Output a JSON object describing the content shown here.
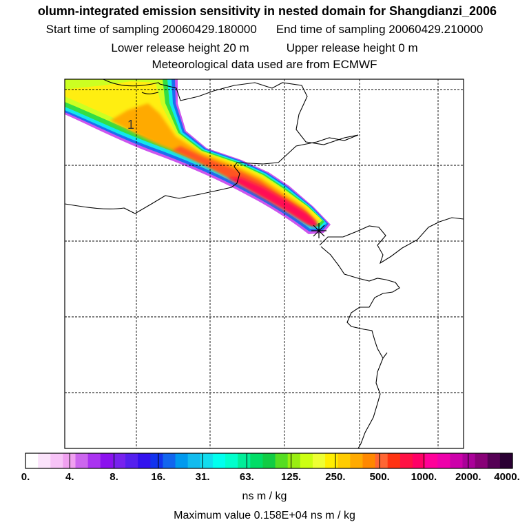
{
  "header": {
    "title": "olumn-integrated emission sensitivity in nested domain for Shangdianzi_2006",
    "start_time": "Start time of sampling 20060429.180000",
    "end_time": "End time of sampling 20060429.210000",
    "lower_release": "Lower release height   20 m",
    "upper_release": "Upper release height    0 m",
    "met_data": "Meteorological data used are from ECMWF"
  },
  "map": {
    "contour_label": "1",
    "source_marker": "receptor-star"
  },
  "colorbar": {
    "ticks": [
      "0.",
      "4.",
      "8.",
      "16.",
      "31.",
      "63.",
      "125.",
      "250.",
      "500.",
      "1000.",
      "2000.",
      "4000."
    ],
    "colors": [
      "#ffffff",
      "#fbe3fb",
      "#f7c3f7",
      "#f0a0f0",
      "#cc66ee",
      "#aa33f0",
      "#8b11ee",
      "#7722ee",
      "#5520ee",
      "#3311ee",
      "#1133ee",
      "#1166ee",
      "#0099ee",
      "#11bbee",
      "#11ddee",
      "#00ffee",
      "#00ffcc",
      "#00ee99",
      "#00dd66",
      "#11cc44",
      "#55dd22",
      "#99ee11",
      "#ccff11",
      "#eeff33",
      "#ffee00",
      "#ffcc00",
      "#ffaa00",
      "#ff8800",
      "#ff6633",
      "#ff3311",
      "#ff1144",
      "#ff0066",
      "#ff0099",
      "#ee00aa",
      "#cc00aa",
      "#aa0099",
      "#880077",
      "#550055",
      "#2a0033"
    ],
    "unit": "ns m / kg"
  },
  "footer": {
    "max_value": "Maximum value  0.158E+04 ns m / kg"
  }
}
